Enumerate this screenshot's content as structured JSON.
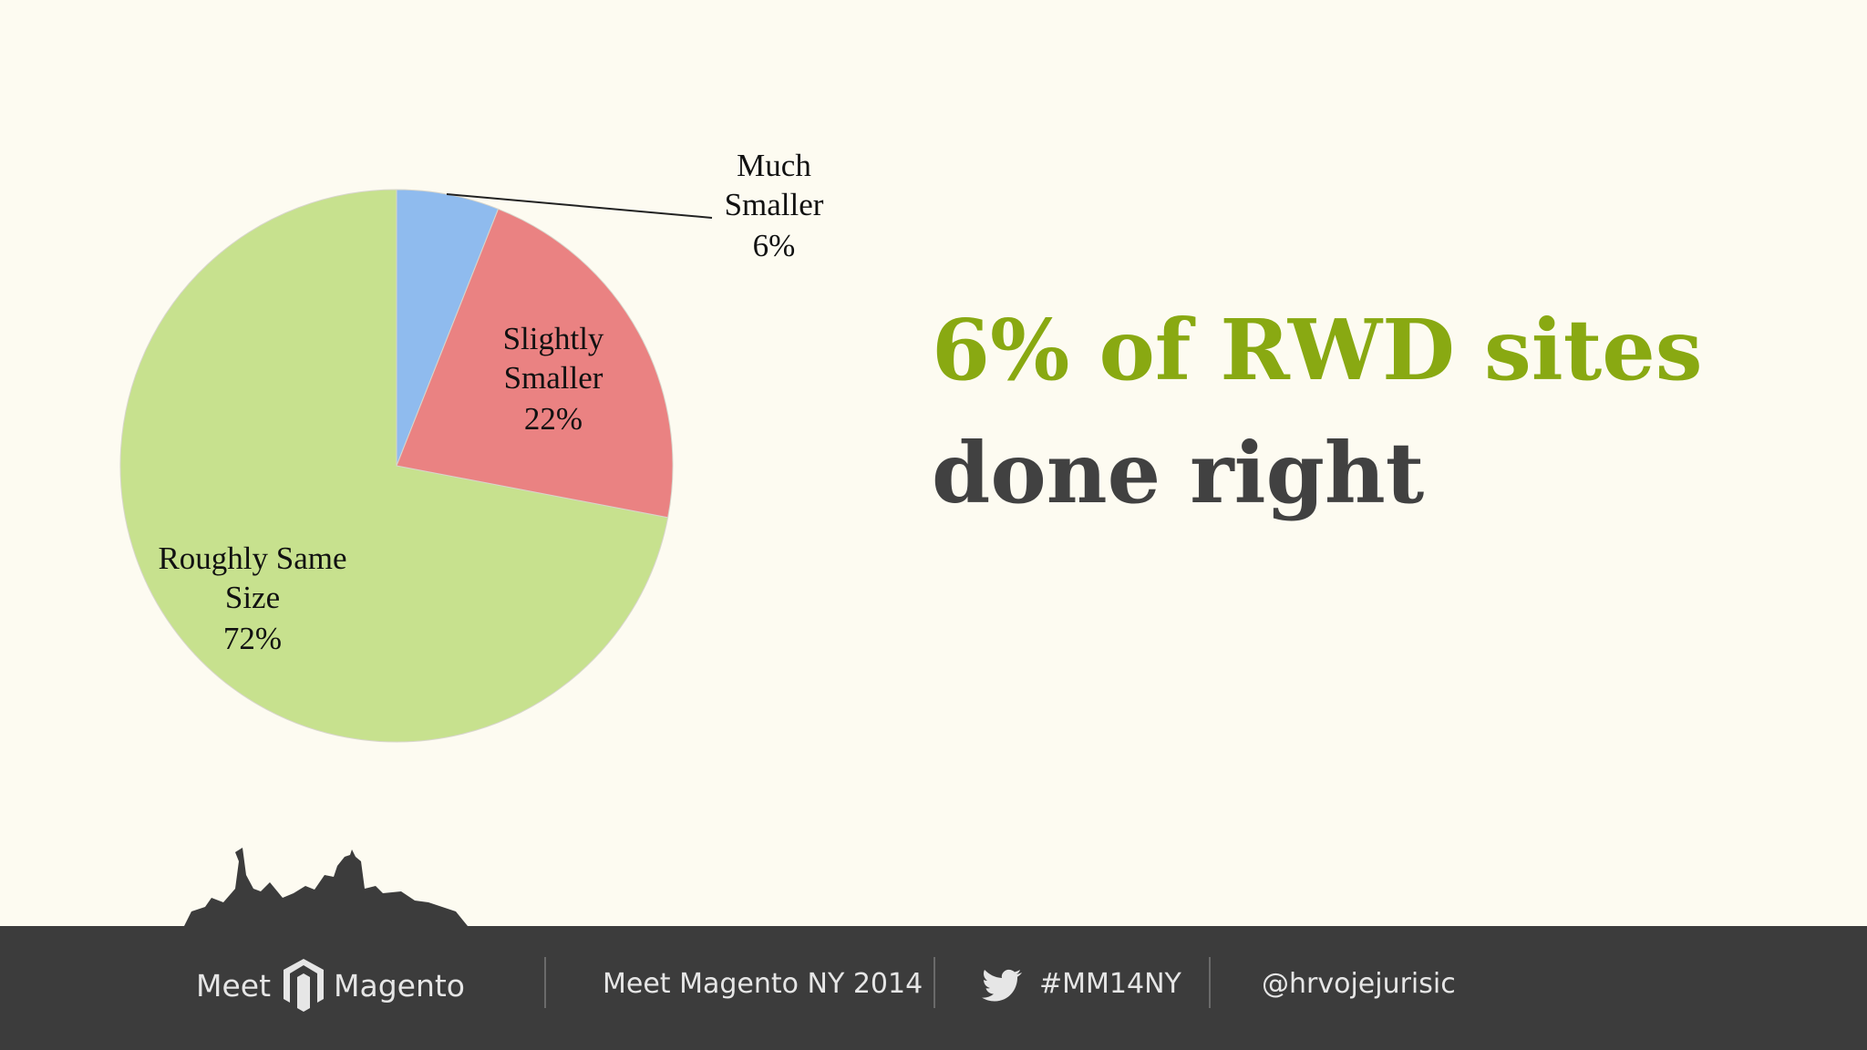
{
  "chart_data": {
    "type": "pie",
    "categories": [
      "Much Smaller",
      "Slightly Smaller",
      "Roughly Same Size"
    ],
    "values": [
      6,
      22,
      72
    ],
    "value_labels": [
      "6%",
      "22%",
      "72%"
    ],
    "colors": [
      "#8fbbee",
      "#ea8282",
      "#c7e18e"
    ]
  },
  "headline": {
    "line1": "6% of RWD sites",
    "line2": "done right"
  },
  "footer": {
    "logo_left": "Meet",
    "logo_right": "Magento",
    "event": "Meet Magento NY 2014",
    "hashtag": "#MM14NY",
    "handle": "@hrvojejurisic"
  }
}
